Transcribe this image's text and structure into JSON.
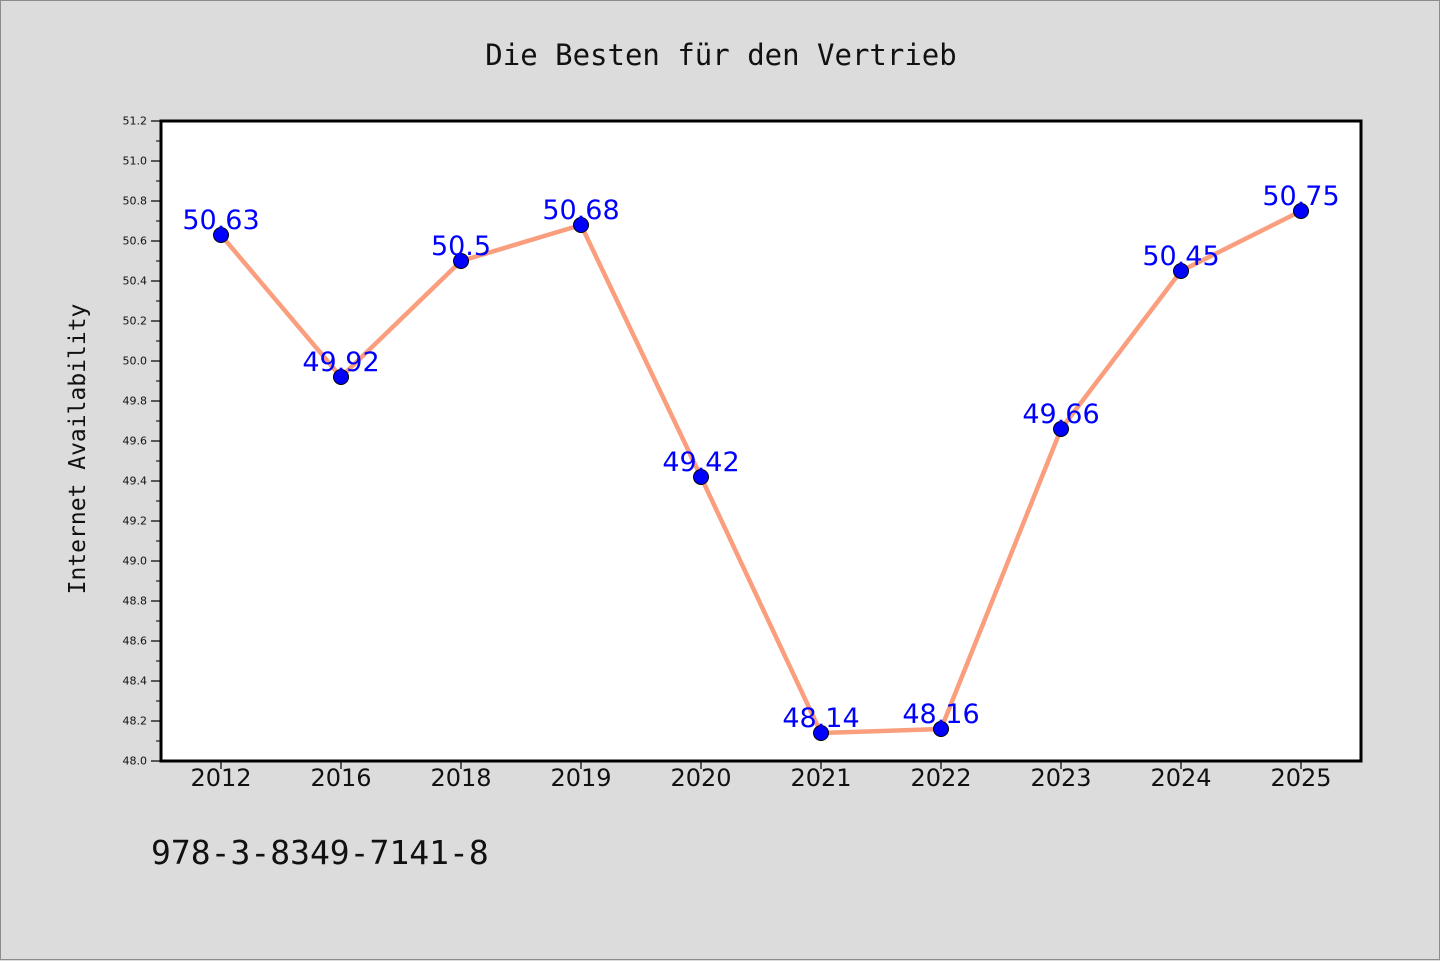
{
  "chart_data": {
    "type": "line",
    "title": "Die Besten für den Vertrieb",
    "xlabel": "",
    "ylabel": "Internet Availability",
    "categories": [
      "2012",
      "2016",
      "2018",
      "2019",
      "2020",
      "2021",
      "2022",
      "2023",
      "2024",
      "2025"
    ],
    "series": [
      {
        "values": [
          50.63,
          49.92,
          50.5,
          50.68,
          49.42,
          48.14,
          48.16,
          49.66,
          50.45,
          50.75
        ],
        "data_labels": [
          "50.63",
          "49.92",
          "50.5",
          "50.68",
          "49.42",
          "48.14",
          "48.16",
          "49.66",
          "50.45",
          "50.75"
        ],
        "line_color": "#fa9e7e",
        "marker_color": "#0000ff"
      }
    ],
    "ylim": [
      48.0,
      51.2
    ],
    "y_major_ticks": [
      "48.0",
      "48.2",
      "48.4",
      "48.6",
      "48.8",
      "49.0",
      "49.2",
      "49.4",
      "49.6",
      "49.8",
      "50.0",
      "50.2",
      "50.4",
      "50.6",
      "50.8",
      "51.0",
      "51.2"
    ],
    "grid": false,
    "legend": "none",
    "label_color": "#0000ff",
    "background_color": "#dcdcdc",
    "plot_background_color": "#ffffff"
  },
  "footer": {
    "isbn": "978-3-8349-7141-8"
  }
}
